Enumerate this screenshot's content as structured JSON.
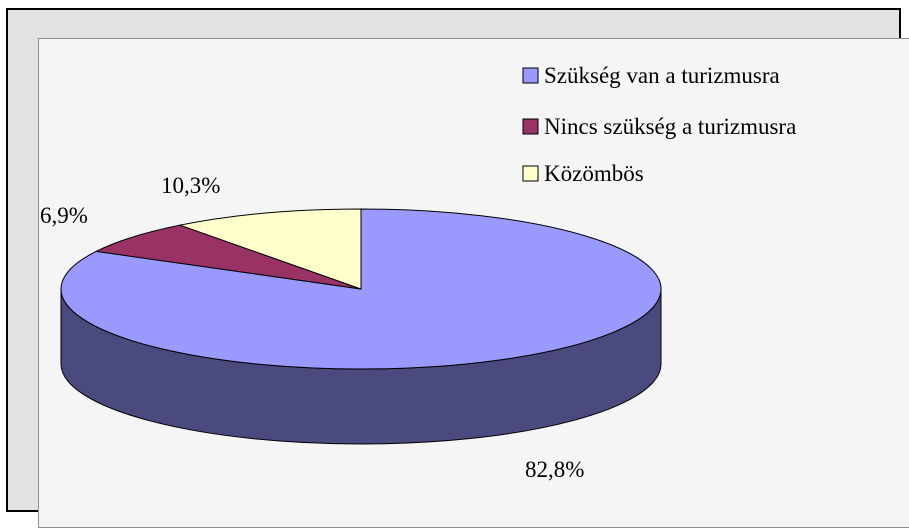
{
  "chart_data": {
    "type": "pie",
    "title": "",
    "legend_position": "top-right",
    "labels": [
      "Szükség van a turizmusra",
      "Nincs szükség a turizmusra",
      "Közömbös"
    ],
    "values": [
      82.8,
      6.9,
      10.3
    ],
    "value_labels": [
      "82,8%",
      "6,9%",
      "10,3%"
    ],
    "colors": [
      "#9999ff",
      "#993366",
      "#ffffcc"
    ],
    "side_colors": [
      "#4a4a7f",
      "#4c1932",
      "#7f7f66"
    ]
  },
  "legend": {
    "items": [
      {
        "label": "Szükség van a turizmusra",
        "color": "#9999ff"
      },
      {
        "label": "Nincs szükség a turizmusra",
        "color": "#993366"
      },
      {
        "label": "Közömbös",
        "color": "#ffffcc"
      }
    ]
  }
}
